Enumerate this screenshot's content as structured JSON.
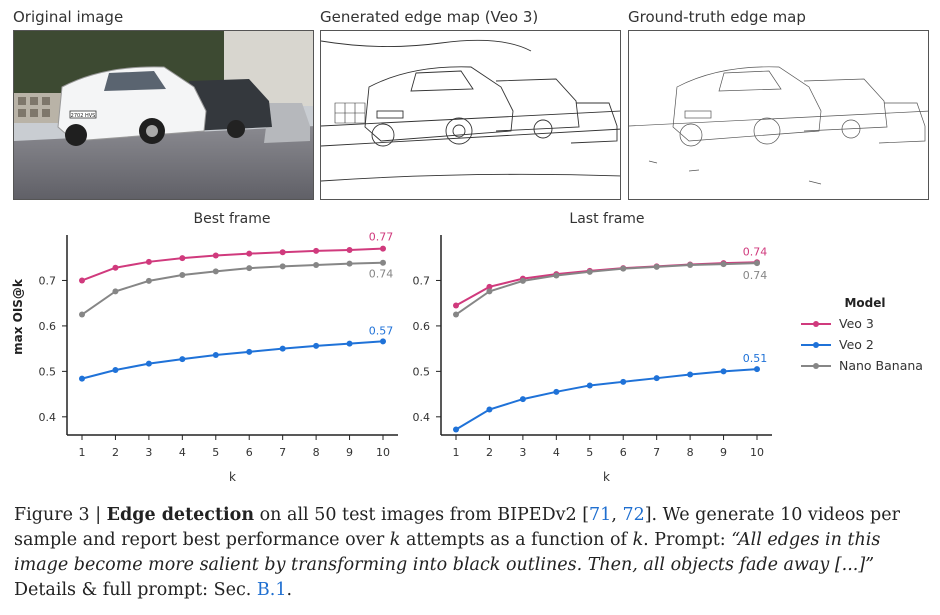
{
  "panels": {
    "original_title": "Original image",
    "generated_title": "Generated edge map (Veo 3)",
    "groundtruth_title": "Ground-truth edge map",
    "plate_text": "2702 HVS"
  },
  "colors": {
    "veo3": "#d03a7d",
    "veo2": "#1f72d8",
    "nano": "#868686"
  },
  "legend": {
    "title": "Model",
    "items": [
      "Veo 3",
      "Veo 2",
      "Nano Banana"
    ]
  },
  "chart_data": [
    {
      "type": "line",
      "title": "Best frame",
      "xlabel": "k",
      "ylabel": "max OIS@k",
      "x": [
        1,
        2,
        3,
        4,
        5,
        6,
        7,
        8,
        9,
        10
      ],
      "ylim": [
        0.36,
        0.8
      ],
      "yticks": [
        0.4,
        0.5,
        0.6,
        0.7
      ],
      "series": [
        {
          "name": "Veo 3",
          "color": "veo3",
          "end_label": "0.77",
          "values": [
            0.7,
            0.728,
            0.741,
            0.749,
            0.755,
            0.759,
            0.762,
            0.765,
            0.767,
            0.77
          ]
        },
        {
          "name": "Veo 2",
          "color": "veo2",
          "end_label": "0.57",
          "values": [
            0.484,
            0.503,
            0.517,
            0.527,
            0.536,
            0.543,
            0.55,
            0.556,
            0.561,
            0.566
          ]
        },
        {
          "name": "Nano Banana",
          "color": "nano",
          "end_label": "0.74",
          "values": [
            0.625,
            0.676,
            0.699,
            0.712,
            0.72,
            0.727,
            0.731,
            0.734,
            0.737,
            0.739
          ]
        }
      ]
    },
    {
      "type": "line",
      "title": "Last frame",
      "xlabel": "k",
      "ylabel": "",
      "x": [
        1,
        2,
        3,
        4,
        5,
        6,
        7,
        8,
        9,
        10
      ],
      "ylim": [
        0.36,
        0.8
      ],
      "yticks": [
        0.4,
        0.5,
        0.6,
        0.7
      ],
      "series": [
        {
          "name": "Veo 3",
          "color": "veo3",
          "end_label": "0.74",
          "values": [
            0.645,
            0.686,
            0.704,
            0.714,
            0.721,
            0.727,
            0.731,
            0.735,
            0.738,
            0.74
          ]
        },
        {
          "name": "Veo 2",
          "color": "veo2",
          "end_label": "0.51",
          "values": [
            0.372,
            0.416,
            0.439,
            0.455,
            0.469,
            0.477,
            0.485,
            0.493,
            0.5,
            0.505
          ]
        },
        {
          "name": "Nano Banana",
          "color": "nano",
          "end_label": "0.74",
          "values": [
            0.625,
            0.676,
            0.699,
            0.711,
            0.719,
            0.726,
            0.73,
            0.734,
            0.736,
            0.738
          ]
        }
      ]
    }
  ],
  "caption": {
    "figure_label": "Figure 3 | ",
    "bold_title": "Edge detection",
    "text_1": " on all 50 test images from BIPEDv2 [",
    "cite_1": "71",
    "text_2": ", ",
    "cite_2": "72",
    "text_3": "]. We generate 10 videos per sample and report best performance over ",
    "var_k1": "k",
    "text_4": " attempts as a function of ",
    "var_k2": "k",
    "text_5": ". Prompt: ",
    "prompt": "“All edges in this image become more salient by transforming into black outlines. Then, all objects fade away [...]”",
    "text_6": " Details & full prompt: Sec. ",
    "section_ref": "B.1",
    "text_7": "."
  }
}
